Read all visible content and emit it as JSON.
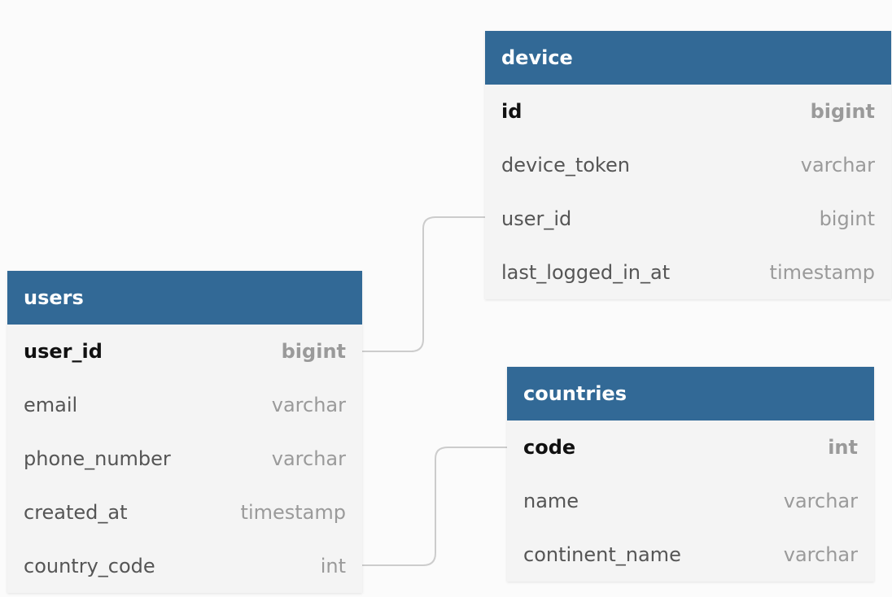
{
  "tables": {
    "device": {
      "title": "device",
      "columns": [
        {
          "name": "id",
          "type": "bigint",
          "pk": true
        },
        {
          "name": "device_token",
          "type": "varchar",
          "pk": false
        },
        {
          "name": "user_id",
          "type": "bigint",
          "pk": false
        },
        {
          "name": "last_logged_in_at",
          "type": "timestamp",
          "pk": false
        }
      ]
    },
    "users": {
      "title": "users",
      "columns": [
        {
          "name": "user_id",
          "type": "bigint",
          "pk": true
        },
        {
          "name": "email",
          "type": "varchar",
          "pk": false
        },
        {
          "name": "phone_number",
          "type": "varchar",
          "pk": false
        },
        {
          "name": "created_at",
          "type": "timestamp",
          "pk": false
        },
        {
          "name": "country_code",
          "type": "int",
          "pk": false
        }
      ]
    },
    "countries": {
      "title": "countries",
      "columns": [
        {
          "name": "code",
          "type": "int",
          "pk": true
        },
        {
          "name": "name",
          "type": "varchar",
          "pk": false
        },
        {
          "name": "continent_name",
          "type": "varchar",
          "pk": false
        }
      ]
    }
  },
  "relations": [
    {
      "from": "users.user_id",
      "to": "device.user_id"
    },
    {
      "from": "users.country_code",
      "to": "countries.code"
    }
  ],
  "colors": {
    "header": "#326996",
    "connector": "#cccccc"
  }
}
